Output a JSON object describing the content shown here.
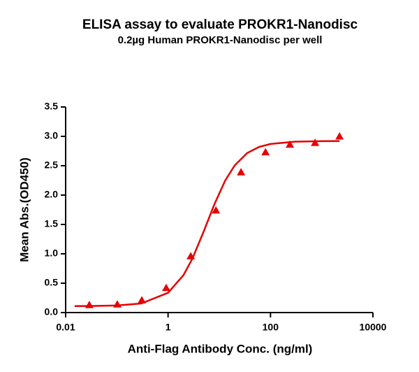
{
  "chart_data": {
    "type": "scatter",
    "title": "ELISA assay to evaluate PROKR1-Nanodisc",
    "subtitle": "0.2µg Human PROKR1-Nanodisc per well",
    "x_label": "Anti-Flag Antibody Conc. (ng/ml)",
    "y_label": "Mean Abs.(OD450)",
    "log_x": true,
    "xlim": [
      0.01,
      10000
    ],
    "xticks": [
      0.01,
      1,
      100,
      10000
    ],
    "ylim": [
      0,
      3.5
    ],
    "yticks": [
      {
        "value": 0,
        "label": "0.0"
      },
      0.5,
      {
        "value": 1,
        "label": "1.0"
      },
      1.5,
      {
        "value": 2,
        "label": "2.0"
      },
      2.5,
      {
        "value": 3,
        "label": "3.0"
      },
      3.5
    ],
    "series": [
      {
        "color": "#e60000",
        "x": [
          0.029,
          0.102,
          0.307,
          0.92,
          2.77,
          8.6,
          26.6,
          80,
          239,
          742,
          2229
        ],
        "values": [
          0.13,
          0.14,
          0.21,
          0.42,
          0.96,
          1.74,
          2.39,
          2.73,
          2.86,
          2.89,
          3.0
        ]
      }
    ],
    "curve": {
      "color": "#e60000",
      "x": [
        0.015,
        0.03,
        0.1,
        0.3,
        1,
        2,
        3,
        5,
        8,
        13,
        20,
        35,
        60,
        100,
        300,
        1000,
        2229
      ],
      "values": [
        0.111,
        0.112,
        0.12,
        0.155,
        0.337,
        0.637,
        0.923,
        1.387,
        1.84,
        2.247,
        2.506,
        2.715,
        2.82,
        2.87,
        2.909,
        2.918,
        2.92
      ]
    }
  }
}
